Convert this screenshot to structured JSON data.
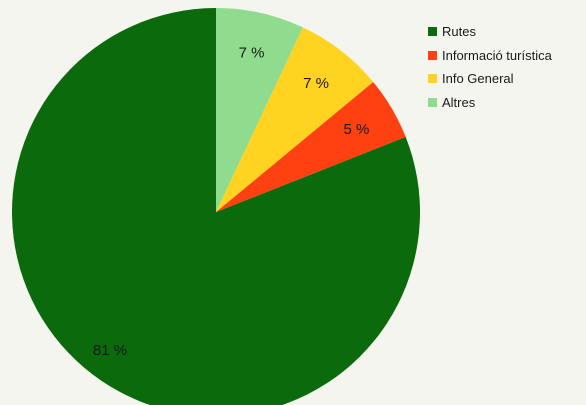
{
  "chart_data": {
    "type": "pie",
    "categories": [
      "Rutes",
      "Informació turística",
      "Info General",
      "Altres"
    ],
    "values": [
      81,
      5,
      7,
      7
    ],
    "labels": [
      "81 %",
      "5 %",
      "7 %",
      "7 %"
    ],
    "colors": [
      "#0b6a0b",
      "#ff4010",
      "#ffd320",
      "#8fdc8f"
    ],
    "start_angle_deg": 0,
    "direction": "counterclockwise",
    "legend_position": "top-right",
    "title": ""
  }
}
